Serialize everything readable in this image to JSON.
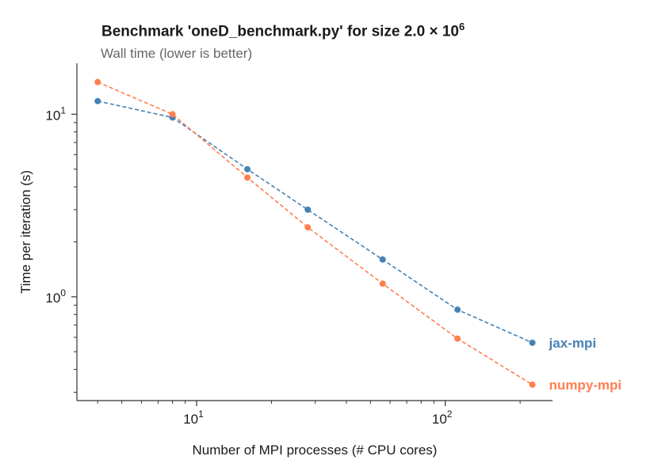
{
  "chart_data": {
    "type": "line",
    "title_prefix": "Benchmark 'oneD_benchmark.py' for size 2.0 × 10",
    "title_exponent": "6",
    "subtitle": "Wall time (lower is better)",
    "xlabel": "Number of MPI processes (# CPU cores)",
    "ylabel": "Time per iteration (s)",
    "xscale": "log",
    "yscale": "log",
    "xlim": [
      3.3,
      270
    ],
    "ylim": [
      0.27,
      19
    ],
    "x_ticks": [
      {
        "base": "10",
        "exp": "1",
        "value": 10
      },
      {
        "base": "10",
        "exp": "2",
        "value": 100
      }
    ],
    "y_ticks": [
      {
        "base": "10",
        "exp": "1",
        "value": 10
      },
      {
        "base": "10",
        "exp": "0",
        "value": 1
      }
    ],
    "grid": false,
    "x": [
      4,
      8,
      16,
      28,
      56,
      112,
      224
    ],
    "series": [
      {
        "name": "jax-mpi",
        "color": "#4682b4",
        "values": [
          11.8,
          9.6,
          5.0,
          3.0,
          1.6,
          0.85,
          0.56
        ]
      },
      {
        "name": "numpy-mpi",
        "color": "#ff7f50",
        "values": [
          15.0,
          10.0,
          4.5,
          2.4,
          1.18,
          0.59,
          0.33
        ]
      }
    ]
  }
}
